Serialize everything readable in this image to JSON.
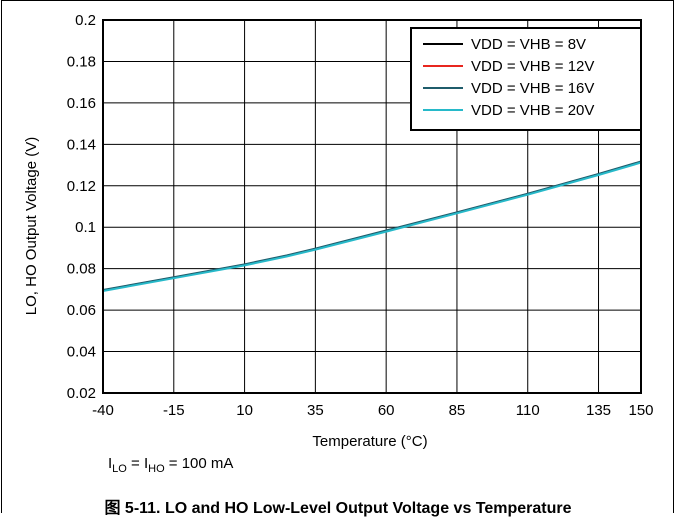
{
  "chart_data": {
    "type": "line",
    "xlabel": "Temperature (°C)",
    "ylabel": "LO, HO Output Voltage (V)",
    "xlim": [
      -40,
      150
    ],
    "ylim": [
      0.02,
      0.2
    ],
    "x_ticks": [
      -40,
      -15,
      10,
      35,
      60,
      85,
      110,
      135,
      150
    ],
    "y_ticks": [
      0.02,
      0.04,
      0.06,
      0.08,
      0.1,
      0.12,
      0.14,
      0.16,
      0.18,
      0.2
    ],
    "x_tick_labels": [
      "-40",
      "-15",
      "10",
      "35",
      "60",
      "85",
      "110",
      "135",
      "150"
    ],
    "y_tick_labels": [
      "0.02",
      "0.04",
      "0.06",
      "0.08",
      "0.1",
      "0.12",
      "0.14",
      "0.16",
      "0.18",
      "0.2"
    ],
    "grid": true,
    "legend_position": "top-right",
    "series": [
      {
        "name": "VDD = VHB = 8V",
        "color": "#000000",
        "x": [
          -40,
          -15,
          10,
          25,
          35,
          60,
          85,
          110,
          135,
          150
        ],
        "y": [
          0.0695,
          0.0757,
          0.0819,
          0.0862,
          0.0895,
          0.0982,
          0.107,
          0.116,
          0.1255,
          0.1315
        ]
      },
      {
        "name": "VDD = VHB = 12V",
        "color": "#e8261f",
        "x": [
          -40,
          -15,
          10,
          25,
          35,
          60,
          85,
          110,
          135,
          150
        ],
        "y": [
          0.0695,
          0.0757,
          0.0819,
          0.0862,
          0.0895,
          0.0982,
          0.107,
          0.116,
          0.1255,
          0.1315
        ]
      },
      {
        "name": "VDD = VHB = 16V",
        "color": "#1f5c6b",
        "x": [
          -40,
          -15,
          10,
          25,
          35,
          60,
          85,
          110,
          135,
          150
        ],
        "y": [
          0.0697,
          0.0759,
          0.0821,
          0.0864,
          0.0897,
          0.0984,
          0.1072,
          0.1162,
          0.1257,
          0.1317
        ]
      },
      {
        "name": "VDD = VHB = 20V",
        "color": "#27b9c9",
        "x": [
          -40,
          -15,
          10,
          25,
          35,
          60,
          85,
          110,
          135,
          150
        ],
        "y": [
          0.0692,
          0.0754,
          0.0816,
          0.0859,
          0.0892,
          0.0979,
          0.1067,
          0.1157,
          0.1252,
          0.1312
        ]
      }
    ]
  },
  "note": {
    "i_lo": "I",
    "i_lo_sub": "LO",
    "eq1": " = I",
    "i_ho_sub": "HO",
    "eq2": " = 100 mA"
  },
  "caption": "图 5-11. LO and HO Low-Level Output Voltage vs Temperature"
}
